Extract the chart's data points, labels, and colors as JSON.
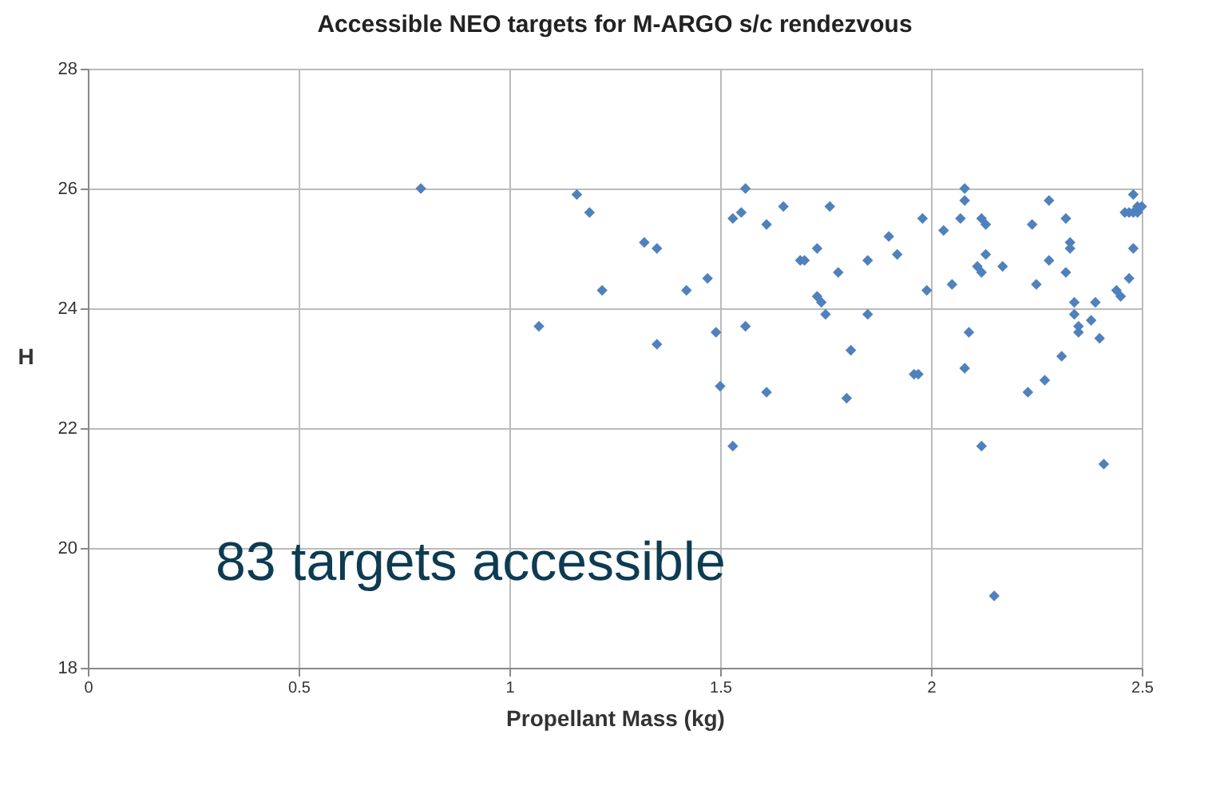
{
  "chart_data": {
    "type": "scatter",
    "title": "Accessible NEO targets for M-ARGO s/c rendezvous",
    "xlabel": "Propellant Mass (kg)",
    "ylabel": "H",
    "annotations": [
      "83 targets accessible"
    ],
    "xlim": [
      0,
      2.5
    ],
    "xticks": [
      0,
      0.5,
      1,
      1.5,
      2,
      2.5
    ],
    "ylim": [
      18,
      28
    ],
    "yticks": [
      18,
      20,
      22,
      24,
      26,
      28
    ],
    "grid": true,
    "marker": "diamond",
    "series": [
      {
        "color": "#4f81bd",
        "x": [
          0.79,
          1.07,
          1.16,
          1.19,
          1.22,
          1.32,
          1.35,
          1.35,
          1.42,
          1.47,
          1.49,
          1.5,
          1.53,
          1.53,
          1.55,
          1.56,
          1.56,
          1.61,
          1.61,
          1.65,
          1.69,
          1.7,
          1.73,
          1.73,
          1.74,
          1.75,
          1.76,
          1.78,
          1.8,
          1.81,
          1.85,
          1.85,
          1.9,
          1.92,
          1.96,
          1.97,
          1.98,
          1.99,
          2.03,
          2.05,
          2.07,
          2.08,
          2.08,
          2.08,
          2.09,
          2.11,
          2.12,
          2.12,
          2.13,
          2.12,
          2.13,
          2.15,
          2.17,
          2.23,
          2.24,
          2.25,
          2.27,
          2.28,
          2.28,
          2.31,
          2.32,
          2.32,
          2.33,
          2.33,
          2.34,
          2.34,
          2.35,
          2.35,
          2.38,
          2.39,
          2.4,
          2.41,
          2.44,
          2.45,
          2.46,
          2.47,
          2.47,
          2.48,
          2.48,
          2.48,
          2.49,
          2.49,
          2.5
        ],
        "values": [
          26.0,
          23.7,
          25.9,
          25.6,
          24.3,
          25.1,
          25.0,
          23.4,
          24.3,
          24.5,
          23.6,
          22.7,
          21.7,
          25.5,
          25.6,
          26.0,
          23.7,
          25.4,
          22.6,
          25.7,
          24.8,
          24.8,
          25.0,
          24.2,
          24.1,
          23.9,
          25.7,
          24.6,
          22.5,
          23.3,
          24.8,
          23.9,
          25.2,
          24.9,
          22.9,
          22.9,
          25.5,
          24.3,
          25.3,
          24.4,
          25.5,
          26.0,
          25.8,
          23.0,
          23.6,
          24.7,
          24.6,
          25.5,
          25.4,
          21.7,
          24.9,
          19.2,
          24.7,
          22.6,
          25.4,
          24.4,
          22.8,
          25.8,
          24.8,
          23.2,
          25.5,
          24.6,
          25.0,
          25.1,
          24.1,
          23.9,
          23.7,
          23.6,
          23.8,
          24.1,
          23.5,
          21.4,
          24.3,
          24.2,
          25.6,
          25.6,
          24.5,
          25.0,
          25.9,
          25.6,
          25.6,
          25.7,
          25.7
        ]
      }
    ]
  }
}
